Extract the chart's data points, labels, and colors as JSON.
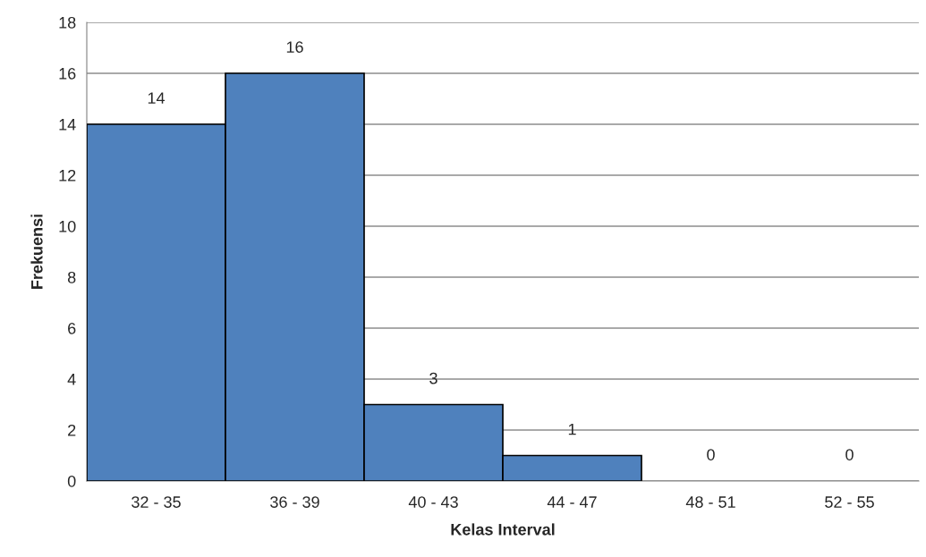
{
  "chart_data": {
    "type": "bar",
    "xlabel": "Kelas Interval",
    "ylabel": "Frekuensi",
    "categories": [
      "32 - 35",
      "36 - 39",
      "40 - 43",
      "44 - 47",
      "48 - 51",
      "52 - 55"
    ],
    "values": [
      14,
      16,
      3,
      1,
      0,
      0
    ],
    "color": "#4f81bd",
    "ylim": [
      0,
      18
    ],
    "yticks": [
      0,
      2,
      4,
      6,
      8,
      10,
      12,
      14,
      16,
      18
    ],
    "grid": "y",
    "data_labels": true
  }
}
